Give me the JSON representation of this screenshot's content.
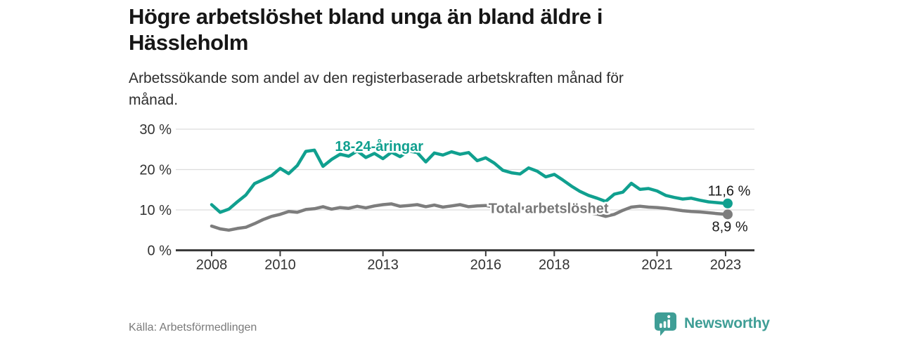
{
  "header": {
    "title_line1": "Högre arbetslöshet bland unga än bland äldre i",
    "title_line2": "Hässleholm",
    "subtitle_line1": "Arbetssökande som andel av den registerbaserade arbetskraften månad för",
    "subtitle_line2": "månad."
  },
  "footer": {
    "source": "Källa: Arbetsförmedlingen",
    "brand": "Newsworthy"
  },
  "colors": {
    "youth_line": "#10a08f",
    "total_line": "#7d7d7d",
    "brand_teal": "#3f9e96",
    "grid": "#dcdcdc",
    "axis": "#3b3b3b",
    "tick_text": "#333333",
    "value_label_text": "#1a1a1a"
  },
  "chart_data": {
    "type": "line",
    "title": "Högre arbetslöshet bland unga än bland äldre i Hässleholm",
    "subtitle": "Arbetssökande som andel av den registerbaserade arbetskraften månad för månad.",
    "xlabel": "",
    "ylabel": "",
    "xlim": [
      2008,
      2023.8
    ],
    "ylim": [
      0,
      30
    ],
    "grid": "horizontal",
    "legend_position": "inline-labels",
    "x": [
      2008,
      2008.25,
      2008.5,
      2008.75,
      2009,
      2009.25,
      2009.5,
      2009.75,
      2010,
      2010.25,
      2010.5,
      2010.75,
      2011,
      2011.25,
      2011.5,
      2011.75,
      2012,
      2012.25,
      2012.5,
      2012.75,
      2013,
      2013.25,
      2013.5,
      2013.75,
      2014,
      2014.25,
      2014.5,
      2014.75,
      2015,
      2015.25,
      2015.5,
      2015.75,
      2016,
      2016.25,
      2016.5,
      2016.75,
      2017,
      2017.25,
      2017.5,
      2017.75,
      2018,
      2018.25,
      2018.5,
      2018.75,
      2019,
      2019.25,
      2019.5,
      2019.75,
      2020,
      2020.25,
      2020.5,
      2020.75,
      2021,
      2021.25,
      2021.5,
      2021.75,
      2022,
      2022.25,
      2022.5,
      2022.75,
      2023
    ],
    "series": [
      {
        "id": "youth",
        "name": "18-24-åringar",
        "color": "#10a08f",
        "end_value_label": "11,6 %",
        "values": [
          11.3,
          9.4,
          10.2,
          12.0,
          13.7,
          16.5,
          17.5,
          18.5,
          20.3,
          19.0,
          21.0,
          24.5,
          24.8,
          20.8,
          22.5,
          23.8,
          23.3,
          24.6,
          23.0,
          24.0,
          22.7,
          24.3,
          23.2,
          24.6,
          24.2,
          21.9,
          24.1,
          23.6,
          24.4,
          23.8,
          24.2,
          22.2,
          22.9,
          21.6,
          19.8,
          19.2,
          18.9,
          20.4,
          19.6,
          18.2,
          18.8,
          17.4,
          15.9,
          14.6,
          13.6,
          12.9,
          12.1,
          13.9,
          14.4,
          16.6,
          15.1,
          15.3,
          14.7,
          13.6,
          13.1,
          12.7,
          12.9,
          12.4,
          12.0,
          11.8,
          11.6
        ]
      },
      {
        "id": "total",
        "name": "Total arbetslöshet",
        "color": "#7d7d7d",
        "end_value_label": "8,9 %",
        "values": [
          6.0,
          5.3,
          5.0,
          5.4,
          5.7,
          6.6,
          7.6,
          8.4,
          8.9,
          9.6,
          9.4,
          10.1,
          10.3,
          10.8,
          10.2,
          10.6,
          10.4,
          10.9,
          10.5,
          11.0,
          11.3,
          11.5,
          10.9,
          11.1,
          11.3,
          10.8,
          11.2,
          10.7,
          11.0,
          11.3,
          10.8,
          11.0,
          11.1,
          10.7,
          10.4,
          10.7,
          10.5,
          10.4,
          10.6,
          10.4,
          10.2,
          10.0,
          9.8,
          9.6,
          9.3,
          9.0,
          8.4,
          8.9,
          9.9,
          10.7,
          10.9,
          10.7,
          10.6,
          10.4,
          10.1,
          9.8,
          9.6,
          9.5,
          9.3,
          9.1,
          8.9
        ]
      }
    ],
    "yticks": [
      {
        "v": 0,
        "label": "0 %"
      },
      {
        "v": 10,
        "label": "10 %"
      },
      {
        "v": 20,
        "label": "20 %"
      },
      {
        "v": 30,
        "label": "30 %"
      }
    ],
    "xticks": [
      {
        "v": 2008,
        "label": "2008"
      },
      {
        "v": 2010,
        "label": "2010"
      },
      {
        "v": 2013,
        "label": "2013"
      },
      {
        "v": 2016,
        "label": "2016"
      },
      {
        "v": 2018,
        "label": "2018"
      },
      {
        "v": 2021,
        "label": "2021"
      },
      {
        "v": 2023,
        "label": "2023"
      }
    ],
    "annotations": [
      {
        "id": "label-youth",
        "text": "18-24-åringar",
        "x": 2011.6,
        "y": 24.6,
        "color": "#10a08f",
        "weight": "bold",
        "size": 20,
        "halo": true
      },
      {
        "id": "label-total",
        "text": "Total arbetslöshet",
        "x": 2016.08,
        "y": 9.2,
        "color": "#777777",
        "weight": "bold",
        "size": 20,
        "halo": true
      },
      {
        "id": "end-label-youth",
        "text": "11,6 %",
        "x": 2022.48,
        "y": 13.6,
        "color": "#1a1a1a",
        "weight": "normal",
        "size": 20,
        "halo": false
      },
      {
        "id": "end-label-total",
        "text": "8,9 %",
        "x": 2022.6,
        "y": 4.7,
        "color": "#1a1a1a",
        "weight": "normal",
        "size": 20,
        "halo": false
      }
    ]
  }
}
